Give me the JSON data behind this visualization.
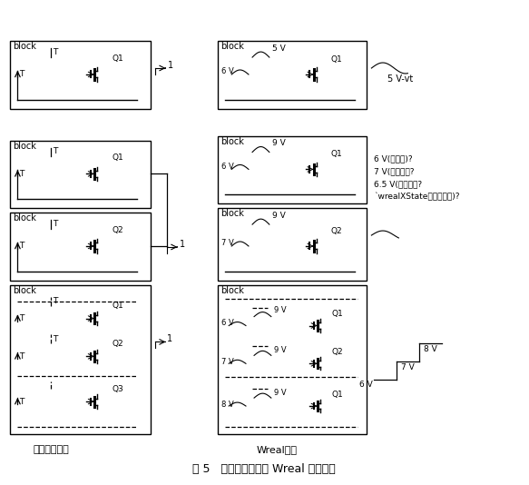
{
  "title": "图 5   逻辑状态模型和 Wreal 模型对比",
  "label_left": "逻辑状态模型",
  "label_right": "Wreal模型",
  "bg_color": "#ffffff",
  "box_color": "#000000",
  "text_color": "#000000",
  "annotation_lines": [
    "6 V(最小值)?",
    "7 V(最大值）?",
    "6.5 V(平均值）?",
    "`wrealXState（发生竞争)?"
  ],
  "fig_width": 5.83,
  "fig_height": 5.34
}
